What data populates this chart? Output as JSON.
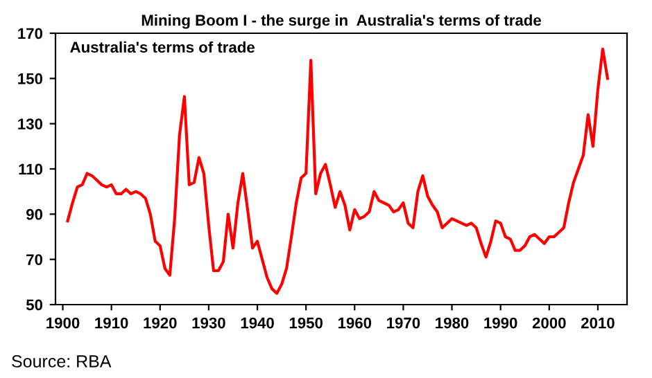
{
  "chart_data": {
    "type": "line",
    "title": "Mining Boom I - the surge in  Australia's terms of trade",
    "annotations": [
      "Australia's terms of trade",
      "Source: RBA"
    ],
    "x": [
      1901,
      1902,
      1903,
      1904,
      1905,
      1906,
      1907,
      1908,
      1909,
      1910,
      1911,
      1912,
      1913,
      1914,
      1915,
      1916,
      1917,
      1918,
      1919,
      1920,
      1921,
      1922,
      1923,
      1924,
      1925,
      1926,
      1927,
      1928,
      1929,
      1930,
      1931,
      1932,
      1933,
      1934,
      1935,
      1936,
      1937,
      1938,
      1939,
      1940,
      1941,
      1942,
      1943,
      1944,
      1945,
      1946,
      1947,
      1948,
      1949,
      1950,
      1951,
      1952,
      1953,
      1954,
      1955,
      1956,
      1957,
      1958,
      1959,
      1960,
      1961,
      1962,
      1963,
      1964,
      1965,
      1966,
      1967,
      1968,
      1969,
      1970,
      1971,
      1972,
      1973,
      1974,
      1975,
      1976,
      1977,
      1978,
      1979,
      1980,
      1981,
      1982,
      1983,
      1984,
      1985,
      1986,
      1987,
      1988,
      1989,
      1990,
      1991,
      1992,
      1993,
      1994,
      1995,
      1996,
      1997,
      1998,
      1999,
      2000,
      2001,
      2002,
      2003,
      2004,
      2005,
      2006,
      2007,
      2008,
      2009,
      2010,
      2011,
      2012
    ],
    "series": [
      {
        "color": "#ff0000",
        "values": [
          87,
          95,
          102,
          103,
          108,
          107,
          105,
          103,
          102,
          103,
          99,
          99,
          101,
          99,
          100,
          99,
          97,
          90,
          78,
          76,
          66,
          63,
          88,
          125,
          142,
          103,
          104,
          115,
          108,
          85,
          65,
          65,
          69,
          90,
          75,
          95,
          108,
          92,
          75,
          78,
          70,
          62,
          57,
          55,
          59,
          66,
          80,
          95,
          106,
          108,
          158,
          99,
          108,
          112,
          103,
          93,
          100,
          94,
          83,
          92,
          88,
          89,
          91,
          100,
          96,
          95,
          94,
          91,
          92,
          95,
          86,
          84,
          100,
          107,
          98,
          94,
          91,
          84,
          86,
          88,
          87,
          86,
          85,
          86,
          84,
          77,
          71,
          78,
          87,
          86,
          80,
          79,
          74,
          74,
          76,
          80,
          81,
          79,
          77,
          80,
          80,
          82,
          84,
          95,
          104,
          110,
          116,
          134,
          120,
          145,
          163,
          150
        ]
      }
    ],
    "xlim": [
      1898.5,
      2016
    ],
    "xticks": [
      1900,
      1910,
      1920,
      1930,
      1940,
      1950,
      1960,
      1970,
      1980,
      1990,
      2000,
      2010
    ],
    "ylim": [
      50,
      170
    ],
    "yticks": [
      50,
      70,
      90,
      110,
      130,
      150,
      170
    ],
    "grid": false,
    "legend": false,
    "marker": "none",
    "line_style": "solid"
  }
}
